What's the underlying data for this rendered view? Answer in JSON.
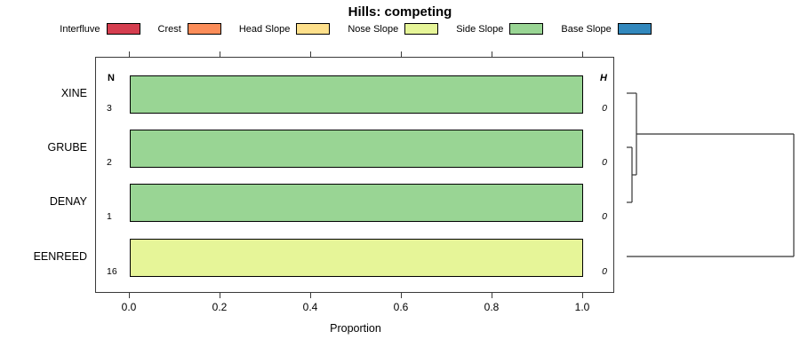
{
  "title": "Hills: competing",
  "legend": {
    "items": [
      {
        "label": "Interfluve",
        "color": "#D53E4F"
      },
      {
        "label": "Crest",
        "color": "#FC8D59"
      },
      {
        "label": "Head Slope",
        "color": "#FEE08B"
      },
      {
        "label": "Nose Slope",
        "color": "#E6F598"
      },
      {
        "label": "Side Slope",
        "color": "#99D594"
      },
      {
        "label": "Base Slope",
        "color": "#3288BD"
      }
    ]
  },
  "columns": {
    "n_header": "N",
    "h_header": "H"
  },
  "chart_data": {
    "type": "bar",
    "orientation": "horizontal-stacked",
    "title": "Hills: competing",
    "xlabel": "Proportion",
    "xlim": [
      0,
      1
    ],
    "xticks": [
      "0.0",
      "0.2",
      "0.4",
      "0.6",
      "0.8",
      "1.0"
    ],
    "categories": [
      "XINE",
      "GRUBE",
      "DENAY",
      "EENREED"
    ],
    "rows": [
      {
        "label": "XINE",
        "n": "3",
        "h": "0",
        "segments": [
          {
            "class": "Side Slope",
            "value": 1.0,
            "color": "#99D594"
          }
        ]
      },
      {
        "label": "GRUBE",
        "n": "2",
        "h": "0",
        "segments": [
          {
            "class": "Side Slope",
            "value": 1.0,
            "color": "#99D594"
          }
        ]
      },
      {
        "label": "DENAY",
        "n": "1",
        "h": "0",
        "segments": [
          {
            "class": "Side Slope",
            "value": 1.0,
            "color": "#99D594"
          }
        ]
      },
      {
        "label": "EENREED",
        "n": "16",
        "h": "0",
        "segments": [
          {
            "class": "Nose Slope",
            "value": 1.0,
            "color": "#E6F598"
          }
        ]
      }
    ],
    "dendrogram": {
      "note": "hierarchical clustering of rows; EENREED joins last at max height",
      "segments": [
        [
          705,
          166,
          711,
          166
        ],
        [
          705,
          228,
          711,
          228
        ],
        [
          711,
          166,
          711,
          228
        ],
        [
          711,
          197,
          716,
          197
        ],
        [
          705,
          105,
          716,
          105
        ],
        [
          716,
          105,
          716,
          197
        ],
        [
          716,
          151,
          893,
          151
        ],
        [
          705,
          289,
          893,
          289
        ],
        [
          893,
          151,
          893,
          289
        ]
      ]
    }
  }
}
